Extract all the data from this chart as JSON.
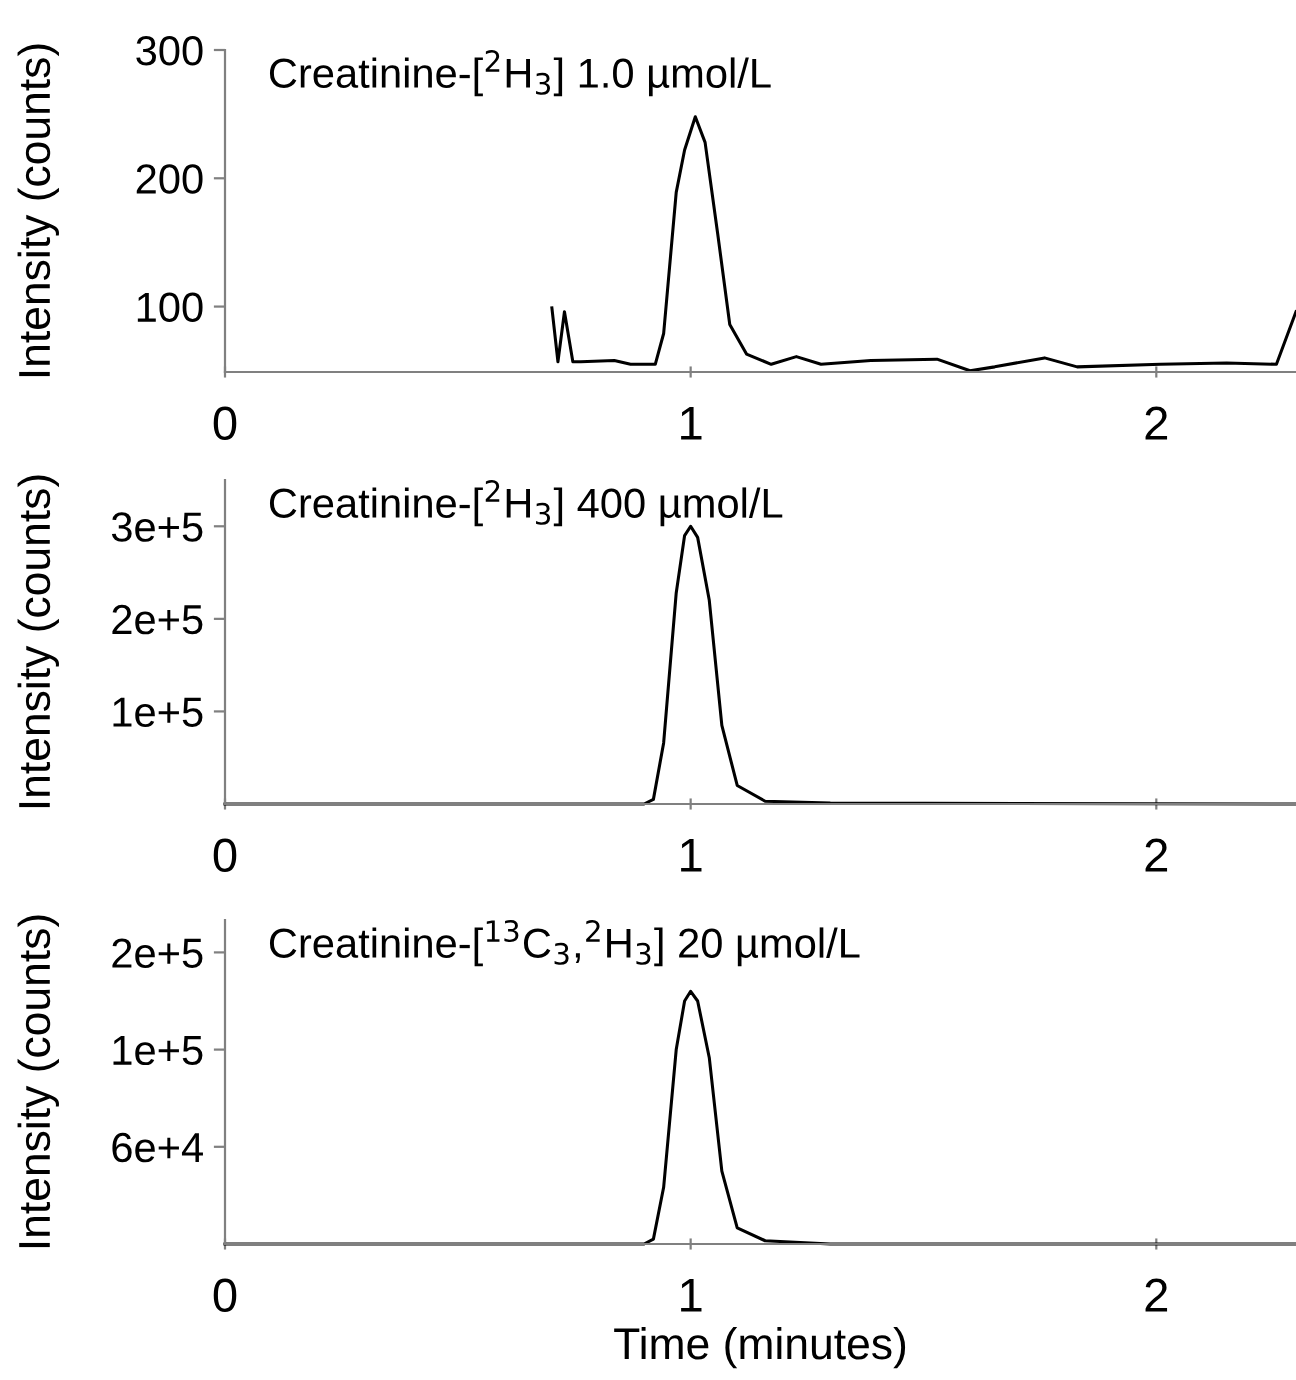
{
  "chart_data": [
    {
      "type": "line",
      "title": "Creatinine-[$^{2}$H$_{3}$] 1.0 µmol/L",
      "ylabel": "Intensity (counts)",
      "xlim": [
        0,
        2.3
      ],
      "ylim": [
        49,
        300
      ],
      "xticks": [
        0,
        1,
        2
      ],
      "yticks": [
        100,
        200,
        300
      ],
      "grid": false,
      "series": [
        {
          "color": "#000000",
          "x": [
            0.702,
            0.715,
            0.729,
            0.747,
            0.764,
            0.836,
            0.871,
            0.924,
            0.942,
            0.969,
            0.987,
            1.01,
            1.031,
            1.058,
            1.084,
            1.12,
            1.173,
            1.227,
            1.28,
            1.387,
            1.529,
            1.6,
            1.653,
            1.76,
            1.83,
            2.009,
            2.151,
            2.258,
            2.3
          ],
          "values": [
            99,
            57,
            96,
            57,
            57,
            58,
            55,
            55,
            79,
            189,
            222,
            248,
            228,
            157,
            86,
            63,
            55,
            61,
            55,
            58,
            59,
            50,
            53,
            60,
            53,
            55,
            56,
            55,
            96
          ]
        }
      ]
    },
    {
      "type": "line",
      "title": "Creatinine-[$^{2}$H$_{3}$] 400 µmol/L",
      "ylabel": "Intensity (counts)",
      "xlim": [
        0,
        2.3
      ],
      "ylim": [
        0,
        350000
      ],
      "xticks": [
        0,
        1,
        2
      ],
      "yticks": [
        {
          "value": 100000,
          "label": "1e+5"
        },
        {
          "value": 200000,
          "label": "2e+5"
        },
        {
          "value": 300000,
          "label": "3e+5"
        }
      ],
      "grid": false,
      "series": [
        {
          "color": "#000000",
          "x": [
            0,
            0.9,
            0.92,
            0.942,
            0.969,
            0.987,
            1.0,
            1.015,
            1.04,
            1.067,
            1.1,
            1.16,
            1.3,
            2.3
          ],
          "values": [
            0,
            0,
            5000,
            66000,
            228000,
            290000,
            300000,
            288000,
            220000,
            85000,
            20000,
            3000,
            1000,
            0
          ]
        }
      ]
    },
    {
      "type": "line",
      "title": "Creatinine-[$^{13}$C$_{3}$,$^{2}$H$_{3}$] 20 µmol/L",
      "xlabel": "Time (minutes)",
      "ylabel": "Intensity (counts)",
      "xlim": [
        0,
        2.3
      ],
      "ylim": [
        0,
        200000
      ],
      "xticks": [
        0,
        1,
        2
      ],
      "yticks": [
        {
          "value": 60000,
          "label": "6e+4"
        },
        {
          "value": 120000,
          "label": "1e+5"
        },
        {
          "value": 180000,
          "label": "2e+5"
        }
      ],
      "grid": false,
      "series": [
        {
          "color": "#000000",
          "x": [
            0,
            0.9,
            0.92,
            0.942,
            0.969,
            0.987,
            1.0,
            1.015,
            1.04,
            1.067,
            1.1,
            1.16,
            1.3,
            2.3
          ],
          "values": [
            0,
            0,
            3000,
            35000,
            120000,
            150000,
            156000,
            150000,
            115000,
            45000,
            10000,
            2000,
            0,
            0
          ]
        }
      ]
    }
  ]
}
